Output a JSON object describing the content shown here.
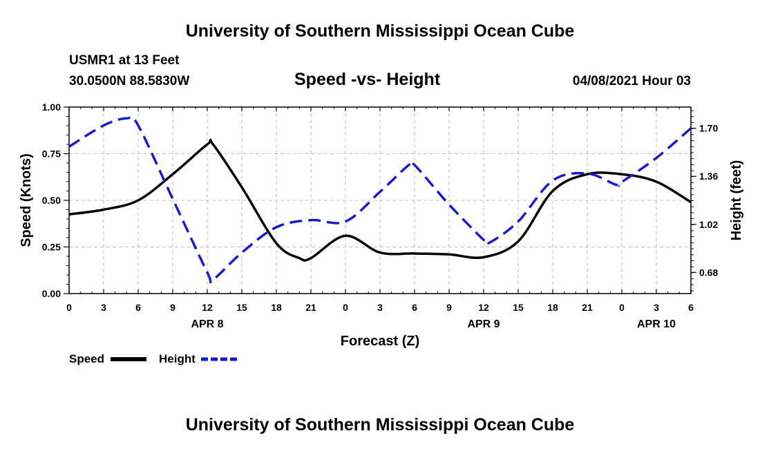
{
  "header": {
    "title": "University of Southern Mississippi Ocean Cube",
    "station": "USMR1 at 13 Feet",
    "coords": "30.0500N  88.5830W",
    "subtitle": "Speed -vs- Height",
    "datetime": "04/08/2021 Hour 03"
  },
  "footer": {
    "title": "University of Southern Mississippi Ocean Cube"
  },
  "colors": {
    "speed": "#000000",
    "height": "#1a1acc",
    "grid": "#bdbdbd"
  },
  "chart_data": {
    "type": "line",
    "title": "Speed -vs- Height",
    "xlabel": "Forecast (Z)",
    "ylabel": "Speed (Knots)",
    "y2label": "Height (feet)",
    "grid": true,
    "legend_position": "bottom-left",
    "x_range_hours": [
      0,
      54
    ],
    "x_ticks": [
      {
        "h": 0,
        "label": "0"
      },
      {
        "h": 3,
        "label": "3"
      },
      {
        "h": 6,
        "label": "6"
      },
      {
        "h": 9,
        "label": "9"
      },
      {
        "h": 12,
        "label": "12"
      },
      {
        "h": 15,
        "label": "15"
      },
      {
        "h": 18,
        "label": "18"
      },
      {
        "h": 21,
        "label": "21"
      },
      {
        "h": 24,
        "label": "0"
      },
      {
        "h": 27,
        "label": "3"
      },
      {
        "h": 30,
        "label": "6"
      },
      {
        "h": 33,
        "label": "9"
      },
      {
        "h": 36,
        "label": "12"
      },
      {
        "h": 39,
        "label": "15"
      },
      {
        "h": 42,
        "label": "18"
      },
      {
        "h": 45,
        "label": "21"
      },
      {
        "h": 48,
        "label": "0"
      },
      {
        "h": 51,
        "label": "3"
      },
      {
        "h": 54,
        "label": "6"
      }
    ],
    "date_labels": [
      {
        "h": 12,
        "label": "APR 8"
      },
      {
        "h": 36,
        "label": "APR 9"
      },
      {
        "h": 51,
        "label": "APR 10"
      }
    ],
    "y_left": {
      "min": 0,
      "max": 1.0,
      "ticks": [
        "0.00",
        "0.25",
        "0.50",
        "0.75",
        "1.00"
      ]
    },
    "y_right": {
      "min": 0.53,
      "max": 1.85,
      "ticks": [
        "0.68",
        "1.02",
        "1.36",
        "1.70"
      ]
    },
    "series": [
      {
        "name": "Speed",
        "axis": "left",
        "style": "solid",
        "points": [
          [
            0,
            0.425
          ],
          [
            3,
            0.45
          ],
          [
            6,
            0.5
          ],
          [
            9,
            0.64
          ],
          [
            12,
            0.8
          ],
          [
            12.5,
            0.8
          ],
          [
            15,
            0.57
          ],
          [
            18,
            0.27
          ],
          [
            20,
            0.19
          ],
          [
            21,
            0.19
          ],
          [
            24,
            0.31
          ],
          [
            27,
            0.22
          ],
          [
            30,
            0.215
          ],
          [
            33,
            0.21
          ],
          [
            36,
            0.195
          ],
          [
            39,
            0.28
          ],
          [
            42,
            0.55
          ],
          [
            45,
            0.64
          ],
          [
            48,
            0.64
          ],
          [
            51,
            0.6
          ],
          [
            54,
            0.49
          ]
        ]
      },
      {
        "name": "Height",
        "axis": "right",
        "style": "dashed",
        "points": [
          [
            0,
            1.57
          ],
          [
            3,
            1.72
          ],
          [
            5,
            1.77
          ],
          [
            6,
            1.72
          ],
          [
            9,
            1.2
          ],
          [
            12,
            0.68
          ],
          [
            12.5,
            0.63
          ],
          [
            15,
            0.82
          ],
          [
            18,
            1.0
          ],
          [
            21,
            1.05
          ],
          [
            24,
            1.04
          ],
          [
            27,
            1.25
          ],
          [
            29.5,
            1.44
          ],
          [
            30,
            1.44
          ],
          [
            33,
            1.16
          ],
          [
            36,
            0.91
          ],
          [
            36.5,
            0.89
          ],
          [
            39,
            1.04
          ],
          [
            42,
            1.33
          ],
          [
            45,
            1.38
          ],
          [
            47.5,
            1.3
          ],
          [
            48,
            1.32
          ],
          [
            51,
            1.49
          ],
          [
            54,
            1.7
          ]
        ]
      }
    ]
  }
}
